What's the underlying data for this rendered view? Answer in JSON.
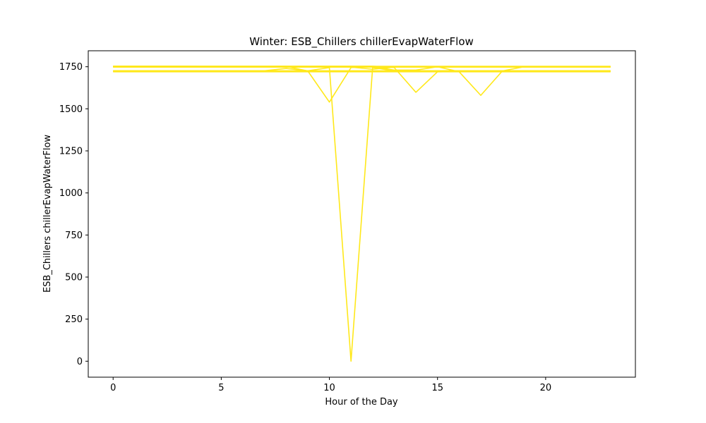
{
  "chart_data": {
    "type": "line",
    "title": "Winter: ESB_Chillers chillerEvapWaterFlow",
    "xlabel": "Hour of the Day",
    "ylabel": "ESB_Chillers chillerEvapWaterFlow",
    "xlim": [
      -1.15,
      24.15
    ],
    "ylim": [
      -95,
      1845
    ],
    "xticks": [
      0,
      5,
      10,
      15,
      20
    ],
    "yticks": [
      0,
      250,
      500,
      750,
      1000,
      1250,
      1500,
      1750
    ],
    "grid": false,
    "color": "#ffe81a",
    "x": [
      0,
      1,
      2,
      3,
      4,
      5,
      6,
      7,
      8,
      9,
      10,
      11,
      12,
      13,
      14,
      15,
      16,
      17,
      18,
      19,
      20,
      21,
      22,
      23
    ],
    "series": [
      {
        "values": [
          1753,
          1753,
          1753,
          1753,
          1752,
          1752,
          1752,
          1752,
          1752,
          1752,
          1752,
          1752,
          1752,
          1752,
          1752,
          1752,
          1752,
          1752,
          1752,
          1752,
          1752,
          1752,
          1752,
          1752
        ]
      },
      {
        "values": [
          1750,
          1751,
          1751,
          1751,
          1750,
          1750,
          1750,
          1750,
          1750,
          1750,
          1750,
          1750,
          1750,
          1750,
          1750,
          1750,
          1750,
          1750,
          1750,
          1750,
          1750,
          1750,
          1750,
          1750
        ]
      },
      {
        "values": [
          1748,
          1748,
          1748,
          1749,
          1748,
          1748,
          1748,
          1748,
          1748,
          1748,
          1748,
          1748,
          1748,
          1748,
          1748,
          1748,
          1748,
          1748,
          1748,
          1748,
          1748,
          1748,
          1748,
          1748
        ]
      },
      {
        "values": [
          1724,
          1724,
          1724,
          1724,
          1724,
          1724,
          1724,
          1724,
          1724,
          1724,
          1724,
          1724,
          1724,
          1724,
          1724,
          1724,
          1724,
          1724,
          1724,
          1724,
          1724,
          1724,
          1724,
          1724
        ]
      },
      {
        "values": [
          1722,
          1722,
          1722,
          1721,
          1722,
          1722,
          1722,
          1722,
          1722,
          1722,
          1722,
          1722,
          1722,
          1722,
          1722,
          1722,
          1722,
          1722,
          1722,
          1722,
          1722,
          1722,
          1722,
          1722
        ]
      },
      {
        "values": [
          1720,
          1720,
          1720,
          1720,
          1720,
          1720,
          1720,
          1720,
          1720,
          1720,
          1720,
          1720,
          1720,
          1720,
          1720,
          1720,
          1720,
          1720,
          1720,
          1720,
          1720,
          1720,
          1720,
          1720
        ]
      },
      {
        "values": [
          1726,
          1726,
          1726,
          1726,
          1726,
          1726,
          1726,
          1726,
          1740,
          1726,
          1726,
          1726,
          1726,
          1726,
          1726,
          1726,
          1726,
          1726,
          1726,
          1726,
          1726,
          1726,
          1726,
          1726
        ]
      },
      {
        "values": [
          1752,
          1752,
          1752,
          1752,
          1752,
          1752,
          1752,
          1752,
          1752,
          1725,
          1540,
          1745,
          1752,
          1752,
          1752,
          1752,
          1752,
          1752,
          1752,
          1752,
          1752,
          1752,
          1752,
          1752
        ]
      },
      {
        "values": [
          1726,
          1726,
          1726,
          1726,
          1726,
          1726,
          1726,
          1726,
          1726,
          1726,
          1745,
          0,
          1745,
          1726,
          1726,
          1726,
          1726,
          1726,
          1726,
          1726,
          1726,
          1726,
          1726,
          1726
        ]
      },
      {
        "values": [
          1753,
          1753,
          1753,
          1753,
          1753,
          1753,
          1753,
          1753,
          1753,
          1753,
          1753,
          1753,
          1753,
          1745,
          1598,
          1720,
          1722,
          1722,
          1722,
          1722,
          1722,
          1722,
          1722,
          1722
        ]
      },
      {
        "values": [
          1750,
          1750,
          1750,
          1750,
          1750,
          1750,
          1750,
          1750,
          1750,
          1750,
          1750,
          1750,
          1750,
          1730,
          1730,
          1750,
          1720,
          1580,
          1725,
          1750,
          1750,
          1750,
          1750,
          1750
        ]
      },
      {
        "values": [
          1748,
          1748,
          1748,
          1748,
          1748,
          1748,
          1748,
          1748,
          1748,
          1748,
          1748,
          1748,
          1735,
          1748,
          1748,
          1748,
          1748,
          1748,
          1748,
          1748,
          1748,
          1748,
          1748,
          1748
        ]
      }
    ]
  }
}
